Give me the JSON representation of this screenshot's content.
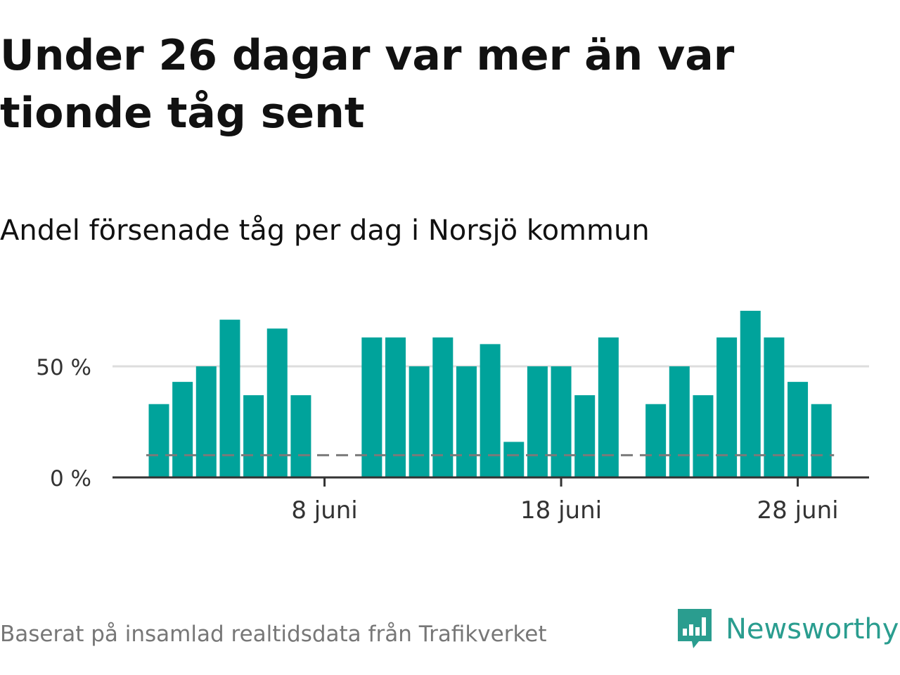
{
  "title": "Under 26 dagar var mer än var tionde tåg sent",
  "subtitle": "Andel försenade tåg per dag i Norsjö kommun",
  "source": "Baserat på insamlad realtidsdata från Trafikverket",
  "brand": "Newsworthy",
  "colors": {
    "bar": "#00a39b",
    "reference": "#7a7a7a",
    "grid": "#dddddd",
    "axis": "#333333",
    "brand": "#2a9d8f"
  },
  "chart_data": {
    "type": "bar",
    "x": [
      1,
      2,
      3,
      4,
      5,
      6,
      7,
      8,
      9,
      10,
      11,
      12,
      13,
      14,
      15,
      16,
      17,
      18,
      19,
      20,
      21,
      22,
      23,
      24,
      25,
      26,
      27,
      28,
      29,
      30
    ],
    "values": [
      33,
      43,
      50,
      71,
      37,
      67,
      37,
      0,
      0,
      63,
      63,
      50,
      63,
      50,
      60,
      16,
      50,
      50,
      37,
      63,
      0,
      33,
      50,
      37,
      63,
      75,
      63,
      43,
      33,
      null
    ],
    "reference_line": {
      "value": 10,
      "style": "dashed"
    },
    "ylim": [
      0,
      75
    ],
    "yticks": [
      {
        "value": 0,
        "label": "0 %"
      },
      {
        "value": 50,
        "label": "50 %"
      }
    ],
    "xticks": [
      {
        "day": 8,
        "label": "8 juni"
      },
      {
        "day": 18,
        "label": "18 juni"
      },
      {
        "day": 28,
        "label": "28 juni"
      }
    ],
    "xlabel": "",
    "ylabel": "",
    "grid": true
  }
}
